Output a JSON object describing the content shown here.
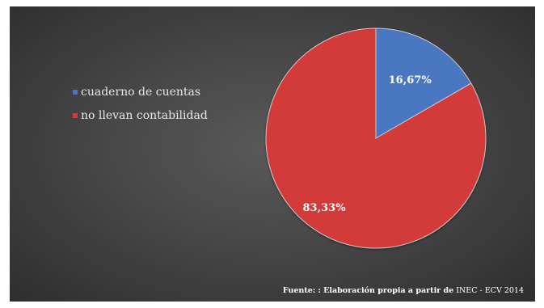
{
  "chart_data": {
    "type": "pie",
    "categories": [
      "cuaderno de cuentas",
      "no llevan contabilidad"
    ],
    "values": [
      16.67,
      83.33
    ],
    "data_labels": [
      "16,67%",
      "83,33%"
    ],
    "colors": [
      "#4a78c0",
      "#d33a3a"
    ],
    "legend_position": "left",
    "title": "",
    "start_angle": "12 o'clock",
    "direction": "clockwise"
  },
  "source": {
    "label": "Fuente:",
    "detail": ": Elaboración propia a partir de",
    "origin": "INEC - ECV 2014"
  },
  "colors": {
    "background": "#474747",
    "text": "#e8e8e8"
  }
}
